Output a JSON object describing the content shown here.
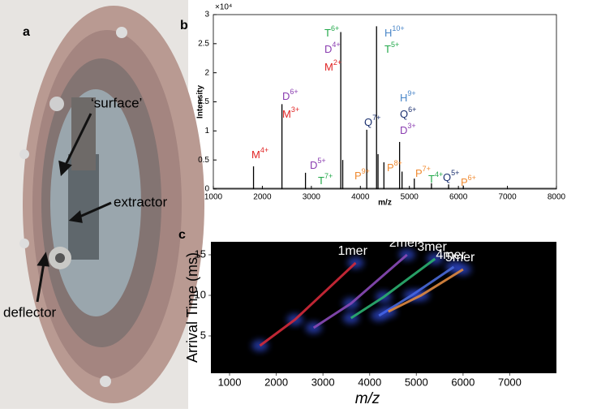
{
  "panel_a": {
    "label": "a",
    "annotations": [
      "‘surface’",
      "extractor",
      "deflector"
    ]
  },
  "chart_data": [
    {
      "type": "spectrum",
      "label": "b",
      "xlabel": "m/z",
      "ylabel": "Intensity",
      "y_multiplier": "×10⁴",
      "x": [
        1820,
        2400,
        2880,
        3600,
        3640,
        4130,
        4330,
        4360,
        4480,
        4800,
        4850,
        5100,
        5450,
        5800,
        6100
      ],
      "values": [
        3900,
        14600,
        2800,
        27000,
        5000,
        10200,
        28000,
        6000,
        4600,
        8100,
        3000,
        1800,
        1000,
        800,
        600
      ],
      "color": "#000000",
      "xlim": [
        1000,
        8000
      ],
      "xticks": [
        1000,
        2000,
        3000,
        4000,
        5000,
        6000,
        7000,
        8000
      ],
      "ylim": [
        0,
        30000
      ],
      "yticks": [
        0,
        {
          "value": 5000,
          "label": "0.5"
        },
        {
          "value": 10000,
          "label": "1"
        },
        {
          "value": 15000,
          "label": "1.5"
        },
        {
          "value": 20000,
          "label": "2"
        },
        {
          "value": 25000,
          "label": "2.5"
        },
        {
          "value": 30000,
          "label": "3"
        }
      ],
      "annotations": [
        {
          "text": "T",
          "charge": "6+",
          "color": "#22a84a"
        },
        {
          "text": "D",
          "charge": "4+",
          "color": "#8a3db0"
        },
        {
          "text": "M",
          "charge": "2+",
          "color": "#e02424"
        },
        {
          "text": "H",
          "charge": "10+",
          "color": "#4a86c8"
        },
        {
          "text": "T",
          "charge": "5+",
          "color": "#22a84a"
        },
        {
          "text": "Q",
          "charge": "7+",
          "color": "#1a2f6e"
        },
        {
          "text": "H",
          "charge": "9+",
          "color": "#4a86c8"
        },
        {
          "text": "Q",
          "charge": "6+",
          "color": "#1a2f6e"
        },
        {
          "text": "D",
          "charge": "3+",
          "color": "#8a3db0"
        },
        {
          "text": "D",
          "charge": "6+",
          "color": "#8a3db0"
        },
        {
          "text": "M",
          "charge": "3+",
          "color": "#e02424"
        },
        {
          "text": "M",
          "charge": "4+",
          "color": "#e02424"
        },
        {
          "text": "D",
          "charge": "5+",
          "color": "#8a3db0"
        },
        {
          "text": "T",
          "charge": "7+",
          "color": "#22a84a"
        },
        {
          "text": "P",
          "charge": "9+",
          "color": "#f08a30"
        },
        {
          "text": "P",
          "charge": "8+",
          "color": "#f08a30"
        },
        {
          "text": "P",
          "charge": "7+",
          "color": "#f08a30"
        },
        {
          "text": "T",
          "charge": "4+",
          "color": "#22a84a"
        },
        {
          "text": "Q",
          "charge": "5+",
          "color": "#1a2f6e"
        },
        {
          "text": "P",
          "charge": "6+",
          "color": "#f08a30"
        }
      ]
    },
    {
      "type": "line",
      "label": "c",
      "xlabel": "m/z",
      "ylabel": "Arrival Time (ms)",
      "xlim": [
        600,
        8000
      ],
      "xticks": [
        1000,
        2000,
        3000,
        4000,
        5000,
        6000,
        7000
      ],
      "ylim": [
        0.4,
        16.6
      ],
      "yticks": [
        5,
        10,
        15
      ],
      "series": [
        {
          "name": "1mer",
          "color": "#d42a3a",
          "x": [
            1650,
            2400,
            3700
          ],
          "values": [
            3.8,
            7,
            14
          ]
        },
        {
          "name": "2mer",
          "color": "#8a4ab8",
          "x": [
            2800,
            3600,
            4800
          ],
          "values": [
            6,
            9,
            15
          ]
        },
        {
          "name": "3mer",
          "color": "#2bb070",
          "x": [
            3600,
            4300,
            5400
          ],
          "values": [
            7.2,
            9.8,
            14.5
          ]
        },
        {
          "name": "4mer",
          "color": "#4a6ad8",
          "x": [
            4200,
            4900,
            5800
          ],
          "values": [
            7.5,
            10,
            13.5
          ]
        },
        {
          "name": "5mer",
          "color": "#e08a40",
          "x": [
            4400,
            5100,
            6000
          ],
          "values": [
            8,
            10,
            13.2
          ]
        }
      ]
    }
  ]
}
